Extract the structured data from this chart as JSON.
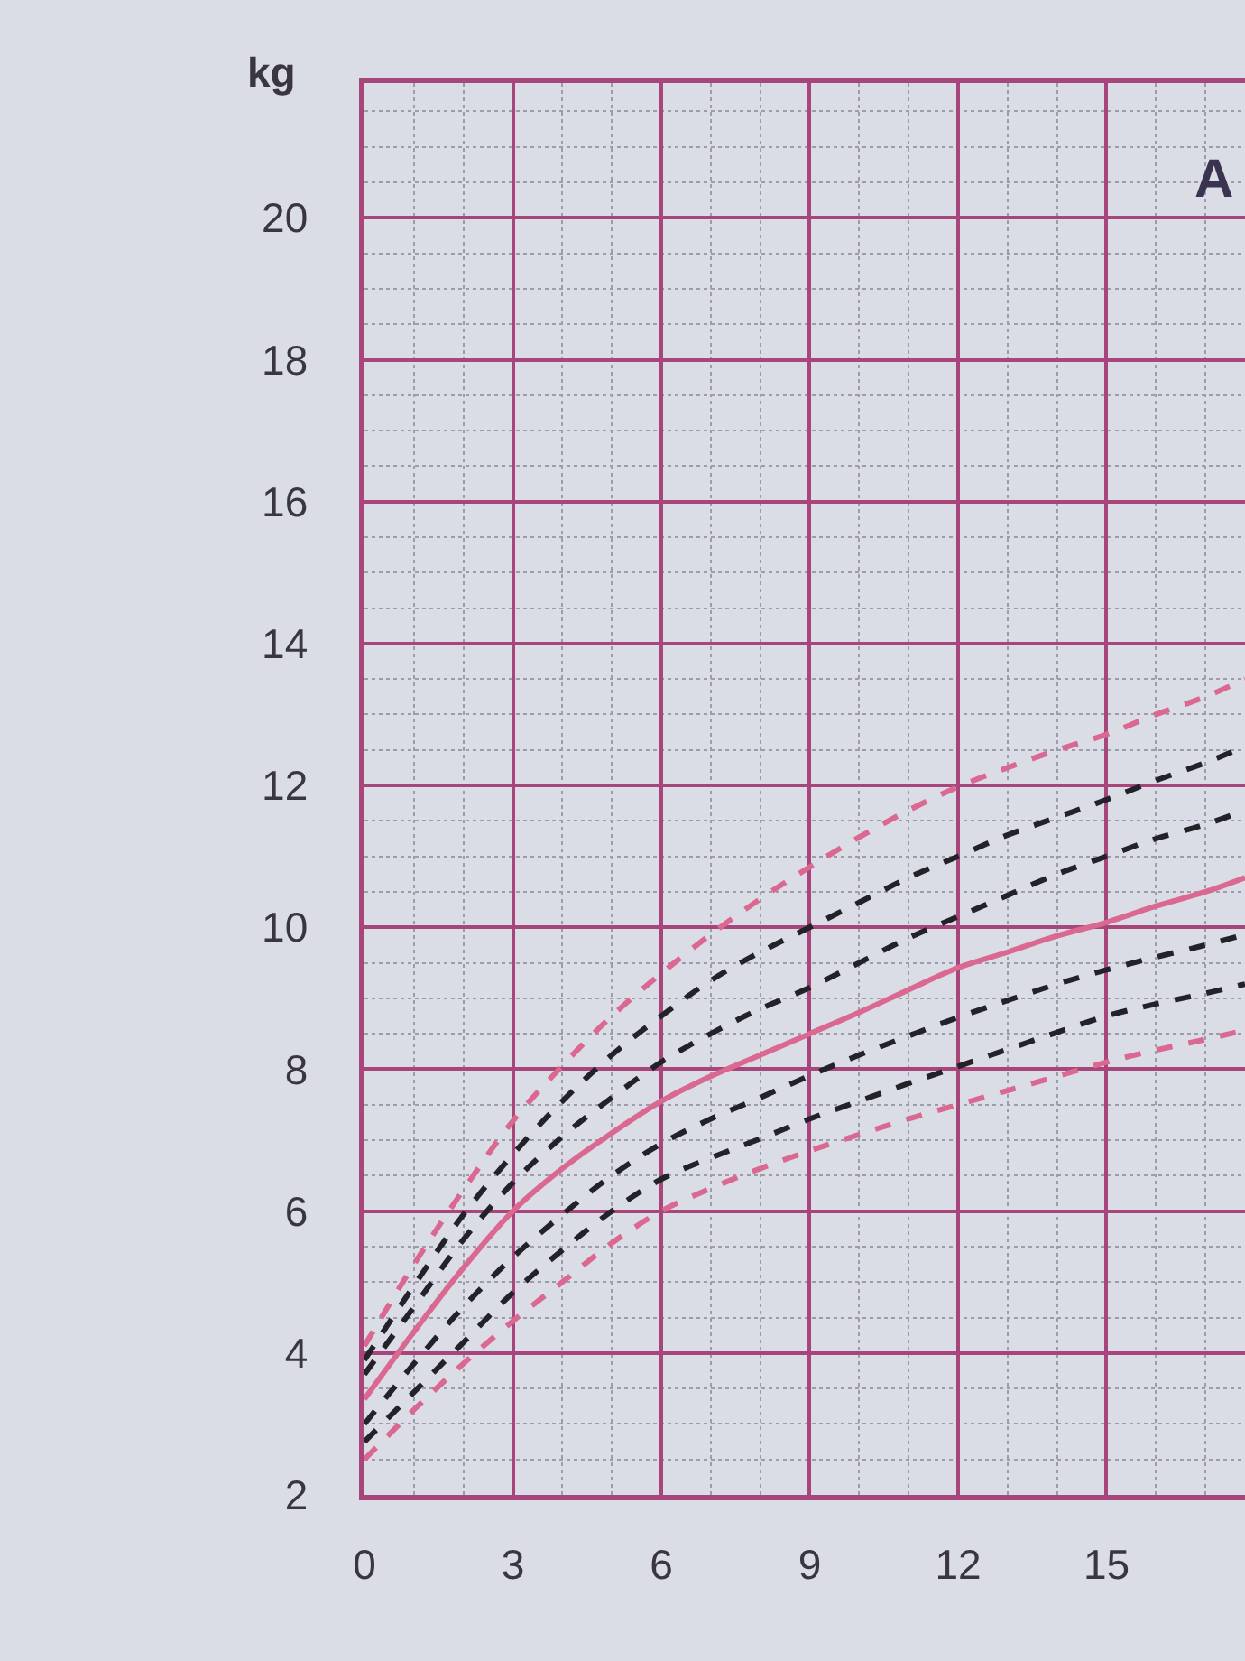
{
  "chart_data": {
    "type": "line",
    "ylabel": "kg",
    "annotations": [
      "A"
    ],
    "x": [
      0,
      1,
      2,
      3,
      4,
      5,
      6,
      7,
      8,
      9,
      10,
      11,
      12,
      13,
      14,
      15,
      16,
      17,
      17.8
    ],
    "series": [
      {
        "color": "#da6890",
        "line_style": "dashed",
        "values": [
          4.1,
          5.25,
          6.3,
          7.27,
          8.05,
          8.75,
          9.35,
          9.9,
          10.4,
          10.85,
          11.27,
          11.65,
          11.98,
          12.25,
          12.5,
          12.72,
          13.0,
          13.25,
          13.5
        ]
      },
      {
        "color": "#222228",
        "line_style": "dashed",
        "values": [
          3.9,
          4.95,
          5.95,
          6.8,
          7.55,
          8.2,
          8.75,
          9.25,
          9.65,
          10.0,
          10.35,
          10.7,
          11.0,
          11.3,
          11.55,
          11.8,
          12.07,
          12.32,
          12.55
        ]
      },
      {
        "color": "#222228",
        "line_style": "dashed",
        "values": [
          3.7,
          4.65,
          5.6,
          6.4,
          7.05,
          7.6,
          8.1,
          8.5,
          8.85,
          9.15,
          9.5,
          9.85,
          10.15,
          10.45,
          10.75,
          11.0,
          11.25,
          11.45,
          11.65
        ]
      },
      {
        "color": "#da6890",
        "line_style": "solid",
        "values": [
          3.35,
          4.3,
          5.2,
          6.0,
          6.6,
          7.1,
          7.55,
          7.9,
          8.2,
          8.5,
          8.8,
          9.12,
          9.43,
          9.65,
          9.88,
          10.07,
          10.3,
          10.5,
          10.7
        ]
      },
      {
        "color": "#222228",
        "line_style": "dashed",
        "values": [
          3.0,
          3.85,
          4.65,
          5.35,
          5.95,
          6.5,
          6.95,
          7.3,
          7.6,
          7.91,
          8.2,
          8.47,
          8.73,
          8.97,
          9.2,
          9.4,
          9.58,
          9.75,
          9.9
        ]
      },
      {
        "color": "#222228",
        "line_style": "dashed",
        "values": [
          2.75,
          3.45,
          4.15,
          4.85,
          5.45,
          6.0,
          6.45,
          6.75,
          7.02,
          7.3,
          7.55,
          7.8,
          8.04,
          8.28,
          8.52,
          8.75,
          8.92,
          9.07,
          9.2
        ]
      },
      {
        "color": "#da6890",
        "line_style": "dashed",
        "values": [
          2.5,
          3.2,
          3.85,
          4.45,
          5.0,
          5.55,
          6.0,
          6.32,
          6.6,
          6.85,
          7.08,
          7.3,
          7.5,
          7.7,
          7.9,
          8.1,
          8.27,
          8.42,
          8.55
        ]
      }
    ],
    "xlim": [
      0,
      17.8
    ],
    "ylim": [
      2,
      21.9
    ],
    "xticks": [
      0,
      {
        "value": 1,
        "label": null
      },
      {
        "value": 2,
        "label": null
      },
      3,
      {
        "value": 4,
        "label": null
      },
      {
        "value": 5,
        "label": null
      },
      6,
      {
        "value": 7,
        "label": null
      },
      {
        "value": 8,
        "label": null
      },
      9,
      {
        "value": 10,
        "label": null
      },
      {
        "value": 11,
        "label": null
      },
      12,
      {
        "value": 13,
        "label": null
      },
      {
        "value": 14,
        "label": null
      },
      15,
      {
        "value": 16,
        "label": null
      },
      {
        "value": 17,
        "label": null
      }
    ],
    "yticks": [
      2,
      {
        "value": 2.5,
        "label": null
      },
      {
        "value": 3,
        "label": null
      },
      {
        "value": 3.5,
        "label": null
      },
      4,
      {
        "value": 4.5,
        "label": null
      },
      {
        "value": 5,
        "label": null
      },
      {
        "value": 5.5,
        "label": null
      },
      6,
      {
        "value": 6.5,
        "label": null
      },
      {
        "value": 7,
        "label": null
      },
      {
        "value": 7.5,
        "label": null
      },
      8,
      {
        "value": 8.5,
        "label": null
      },
      {
        "value": 9,
        "label": null
      },
      {
        "value": 9.5,
        "label": null
      },
      10,
      {
        "value": 10.5,
        "label": null
      },
      {
        "value": 11,
        "label": null
      },
      {
        "value": 11.5,
        "label": null
      },
      12,
      {
        "value": 12.5,
        "label": null
      },
      {
        "value": 13,
        "label": null
      },
      {
        "value": 13.5,
        "label": null
      },
      14,
      {
        "value": 14.5,
        "label": null
      },
      {
        "value": 15,
        "label": null
      },
      {
        "value": 15.5,
        "label": null
      },
      16,
      {
        "value": 16.5,
        "label": null
      },
      {
        "value": 17,
        "label": null
      },
      {
        "value": 17.5,
        "label": null
      },
      18,
      {
        "value": 18.5,
        "label": null
      },
      {
        "value": 19,
        "label": null
      },
      {
        "value": 19.5,
        "label": null
      },
      20,
      {
        "value": 20.5,
        "label": null
      },
      {
        "value": 21,
        "label": null
      },
      {
        "value": 21.5,
        "label": null
      }
    ],
    "grid": true
  }
}
